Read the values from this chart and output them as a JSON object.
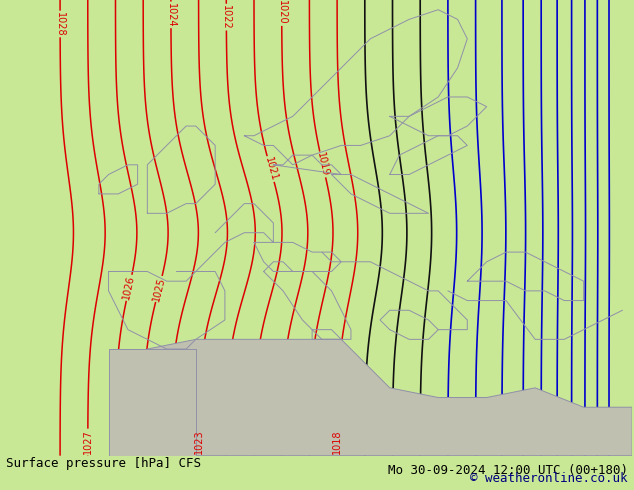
{
  "title_left": "Surface pressure [hPa] CFS",
  "title_right": "Mo 30-09-2024 12:00 UTC (00+180)",
  "copyright": "© weatheronline.co.uk",
  "background_color": "#c8e896",
  "land_color": "#c8e896",
  "border_color": "#9090a8",
  "contour_color_red": "#dd0000",
  "contour_color_black": "#111111",
  "contour_color_blue": "#0000cc",
  "title_fontsize": 9,
  "label_fontsize": 7,
  "fig_width": 6.34,
  "fig_height": 4.9,
  "dpi": 100
}
